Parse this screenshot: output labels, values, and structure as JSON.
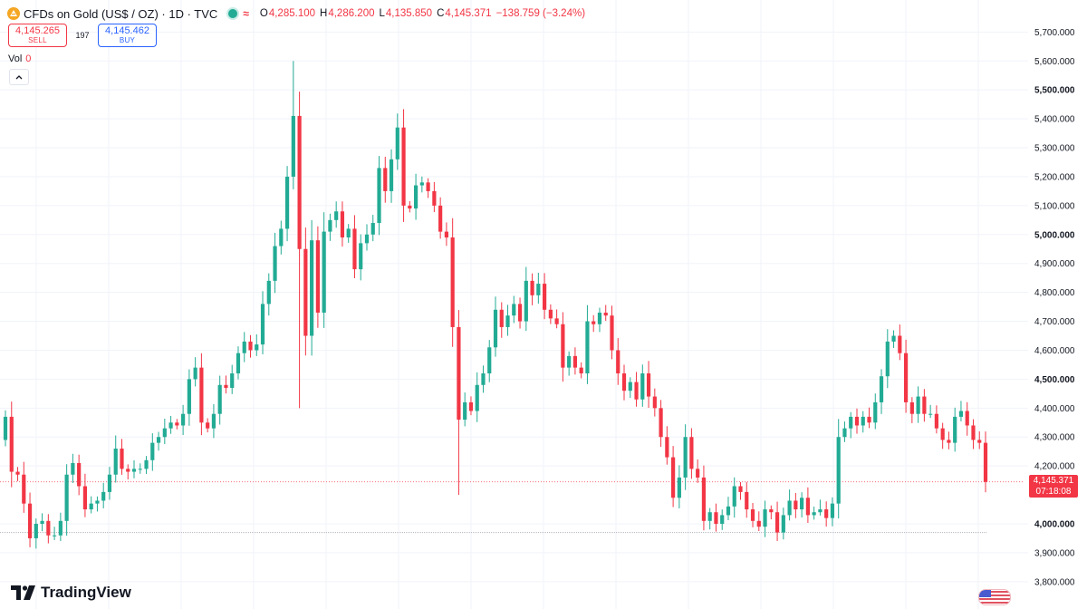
{
  "header": {
    "symbol_title": "CFDs on Gold (US$ / OZ) · 1D · TVC",
    "approx_symbol": "≈",
    "ohlc": [
      {
        "label": "O",
        "value": "4,285.100"
      },
      {
        "label": "H",
        "value": "4,286.200"
      },
      {
        "label": "L",
        "value": "4,135.850"
      },
      {
        "label": "C",
        "value": "4,145.371"
      }
    ],
    "change": "−138.759 (−3.24%)"
  },
  "trade": {
    "sell_price": "4,145.265",
    "sell_label": "SELL",
    "spread": "197",
    "buy_price": "4,145.462",
    "buy_label": "BUY"
  },
  "volume": {
    "label": "Vol",
    "value": "0"
  },
  "price_label": {
    "price": "4,145.371",
    "countdown": "07:18:08"
  },
  "branding": {
    "logo_text": "TradingView"
  },
  "icons": [
    "gold-coin-icon",
    "live-status-icon",
    "chevron-up-icon",
    "tradingview-logo-icon",
    "us-flag-icon"
  ],
  "colors": {
    "up": "#22ab94",
    "down": "#f23645",
    "buy": "#2962ff",
    "text": "#131722",
    "grid": "#f0f3fa"
  },
  "chart_data": {
    "type": "candlestick",
    "y_axis": {
      "ticks": [
        5700,
        5600,
        5500,
        5400,
        5300,
        5200,
        5100,
        5000,
        4900,
        4800,
        4700,
        4600,
        4500,
        4400,
        4300,
        4200,
        4000,
        3900,
        3800
      ],
      "tick_labels": [
        "5,700.000",
        "5,600.000",
        "5,500.000",
        "5,400.000",
        "5,300.000",
        "5,200.000",
        "5,100.000",
        "5,000.000",
        "4,900.000",
        "4,800.000",
        "4,700.000",
        "4,600.000",
        "4,500.000",
        "4,400.000",
        "4,300.000",
        "4,200.000",
        "4,000.000",
        "3,900.000",
        "3,800.000"
      ],
      "bold_ticks": [
        5500,
        5000,
        4500,
        4000
      ],
      "range": [
        3780,
        5740
      ]
    },
    "last_price": 4145.371,
    "horizontal_line": 3970,
    "closes": [
      4370,
      4180,
      4170,
      4070,
      3950,
      4000,
      4010,
      3960,
      3960,
      4010,
      4170,
      4210,
      4130,
      4050,
      4070,
      4080,
      4110,
      4170,
      4260,
      4190,
      4180,
      4190,
      4190,
      4220,
      4280,
      4300,
      4330,
      4350,
      4340,
      4380,
      4500,
      4540,
      4350,
      4330,
      4380,
      4480,
      4470,
      4520,
      4590,
      4630,
      4600,
      4620,
      4760,
      4840,
      4960,
      5020,
      5200,
      5410,
      4950,
      4650,
      4980,
      4730,
      5010,
      5050,
      5080,
      4990,
      5020,
      4880,
      4970,
      5000,
      5040,
      5230,
      5150,
      5260,
      5370,
      5100,
      5090,
      5170,
      5180,
      5150,
      5100,
      5010,
      4990,
      4680,
      4360,
      4420,
      4390,
      4480,
      4520,
      4610,
      4740,
      4680,
      4720,
      4760,
      4700,
      4840,
      4790,
      4830,
      4740,
      4710,
      4690,
      4540,
      4580,
      4540,
      4520,
      4700,
      4690,
      4730,
      4720,
      4600,
      4520,
      4460,
      4490,
      4430,
      4520,
      4440,
      4400,
      4300,
      4230,
      4090,
      4160,
      4300,
      4190,
      4160,
      4010,
      4040,
      4000,
      4030,
      4060,
      4130,
      4110,
      4050,
      4010,
      3990,
      4050,
      4040,
      3970,
      4030,
      4080,
      4050,
      4090,
      4030,
      4040,
      4050,
      4020,
      4070,
      4300,
      4330,
      4370,
      4340,
      4370,
      4350,
      4420,
      4510,
      4630,
      4650,
      4590,
      4420,
      4380,
      4440,
      4380,
      4380,
      4330,
      4290,
      4280,
      4370,
      4390,
      4340,
      4290,
      4280,
      4145
    ]
  }
}
